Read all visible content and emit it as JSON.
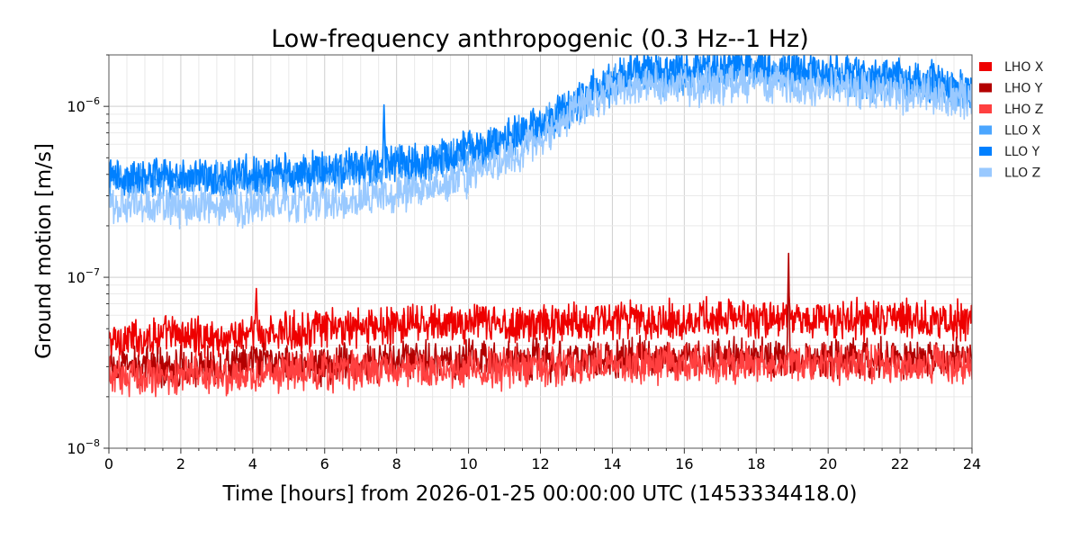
{
  "chart_data": {
    "type": "line",
    "title": "Low-frequency anthropogenic (0.3 Hz--1 Hz)",
    "xlabel": "Time [hours] from 2026-01-25 00:00:00 UTC (1453334418.0)",
    "ylabel": "Ground motion [m/s]",
    "x_unit": "hours",
    "xlim": [
      0,
      24
    ],
    "ylim": [
      1e-08,
      2e-06
    ],
    "yscale": "log",
    "grid": true,
    "legend_position": "outside-top-right",
    "x_ticks": [
      "0",
      "2",
      "4",
      "6",
      "8",
      "10",
      "12",
      "14",
      "16",
      "18",
      "20",
      "22",
      "24"
    ],
    "y_ticks": [
      {
        "value": 1e-08,
        "base": "10",
        "exp": "−8"
      },
      {
        "value": 1e-07,
        "base": "10",
        "exp": "−7"
      },
      {
        "value": 1e-06,
        "base": "10",
        "exp": "−6"
      }
    ],
    "x": [
      0,
      1,
      2,
      3,
      4,
      5,
      6,
      7,
      8,
      9,
      10,
      11,
      12,
      13,
      14,
      15,
      16,
      17,
      18,
      19,
      20,
      21,
      22,
      23,
      24
    ],
    "series": [
      {
        "name": "LHO X",
        "color": "#ee0000",
        "values": [
          4.2e-08,
          4.5e-08,
          4.6e-08,
          4.4e-08,
          4.6e-08,
          4.8e-08,
          5e-08,
          5.1e-08,
          5.2e-08,
          5.3e-08,
          5.4e-08,
          5.3e-08,
          5.4e-08,
          5.5e-08,
          5.7e-08,
          5.6e-08,
          5.7e-08,
          5.8e-08,
          5.7e-08,
          5.8e-08,
          5.7e-08,
          5.6e-08,
          5.7e-08,
          5.6e-08,
          5.5e-08
        ],
        "spikes": [
          {
            "x": 4.1,
            "y": 8.6e-08
          },
          {
            "x": 18.9,
            "y": 8.5e-08
          }
        ]
      },
      {
        "name": "LHO Y",
        "color": "#b30000",
        "values": [
          2.9e-08,
          3e-08,
          3e-08,
          3e-08,
          3.1e-08,
          3.1e-08,
          3.1e-08,
          3.2e-08,
          3.2e-08,
          3.2e-08,
          3.3e-08,
          3.3e-08,
          3.3e-08,
          3.3e-08,
          3.4e-08,
          3.4e-08,
          3.4e-08,
          3.4e-08,
          3.4e-08,
          3.4e-08,
          3.4e-08,
          3.4e-08,
          3.4e-08,
          3.4e-08,
          3.3e-08
        ],
        "spikes": [
          {
            "x": 18.9,
            "y": 1.38e-07
          }
        ]
      },
      {
        "name": "LHO Z",
        "color": "#ff4040",
        "values": [
          2.6e-08,
          2.7e-08,
          2.7e-08,
          2.7e-08,
          2.7e-08,
          2.8e-08,
          2.8e-08,
          2.9e-08,
          2.9e-08,
          2.9e-08,
          2.9e-08,
          2.9e-08,
          3e-08,
          3e-08,
          3.1e-08,
          3.1e-08,
          3.1e-08,
          3.1e-08,
          3.1e-08,
          3.1e-08,
          3.1e-08,
          3.1e-08,
          3.1e-08,
          3.1e-08,
          3e-08
        ],
        "spikes": []
      },
      {
        "name": "LLO X",
        "color": "#4ba6ff",
        "values": [
          3.6e-07,
          3.7e-07,
          3.7e-07,
          3.7e-07,
          3.8e-07,
          3.9e-07,
          4e-07,
          4.2e-07,
          4.5e-07,
          4.7e-07,
          5.4e-07,
          6.2e-07,
          7.5e-07,
          1e-06,
          1.35e-06,
          1.55e-06,
          1.5e-06,
          1.55e-06,
          1.6e-06,
          1.55e-06,
          1.45e-06,
          1.4e-06,
          1.35e-06,
          1.3e-06,
          1.2e-06
        ],
        "spikes": [
          {
            "x": 7.65,
            "y": 1e-06
          }
        ]
      },
      {
        "name": "LLO Y",
        "color": "#0080ff",
        "values": [
          3.8e-07,
          3.9e-07,
          4e-07,
          3.9e-07,
          4e-07,
          4.1e-07,
          4.2e-07,
          4.4e-07,
          4.7e-07,
          4.9e-07,
          5.5e-07,
          6.3e-07,
          7.8e-07,
          1.05e-06,
          1.45e-06,
          1.7e-06,
          1.65e-06,
          1.7e-06,
          1.75e-06,
          1.7e-06,
          1.6e-06,
          1.55e-06,
          1.45e-06,
          1.4e-06,
          1.3e-06
        ],
        "spikes": [
          {
            "x": 7.65,
            "y": 1.02e-06
          }
        ]
      },
      {
        "name": "LLO Z",
        "color": "#99c9ff",
        "values": [
          2.6e-07,
          2.7e-07,
          2.6e-07,
          2.6e-07,
          2.6e-07,
          2.7e-07,
          2.8e-07,
          2.9e-07,
          3.1e-07,
          3.3e-07,
          3.9e-07,
          4.8e-07,
          6.2e-07,
          9.5e-07,
          1.25e-06,
          1.35e-06,
          1.3e-06,
          1.35e-06,
          1.4e-06,
          1.35e-06,
          1.3e-06,
          1.25e-06,
          1.2e-06,
          1.15e-06,
          1.1e-06
        ],
        "spikes": []
      }
    ]
  }
}
